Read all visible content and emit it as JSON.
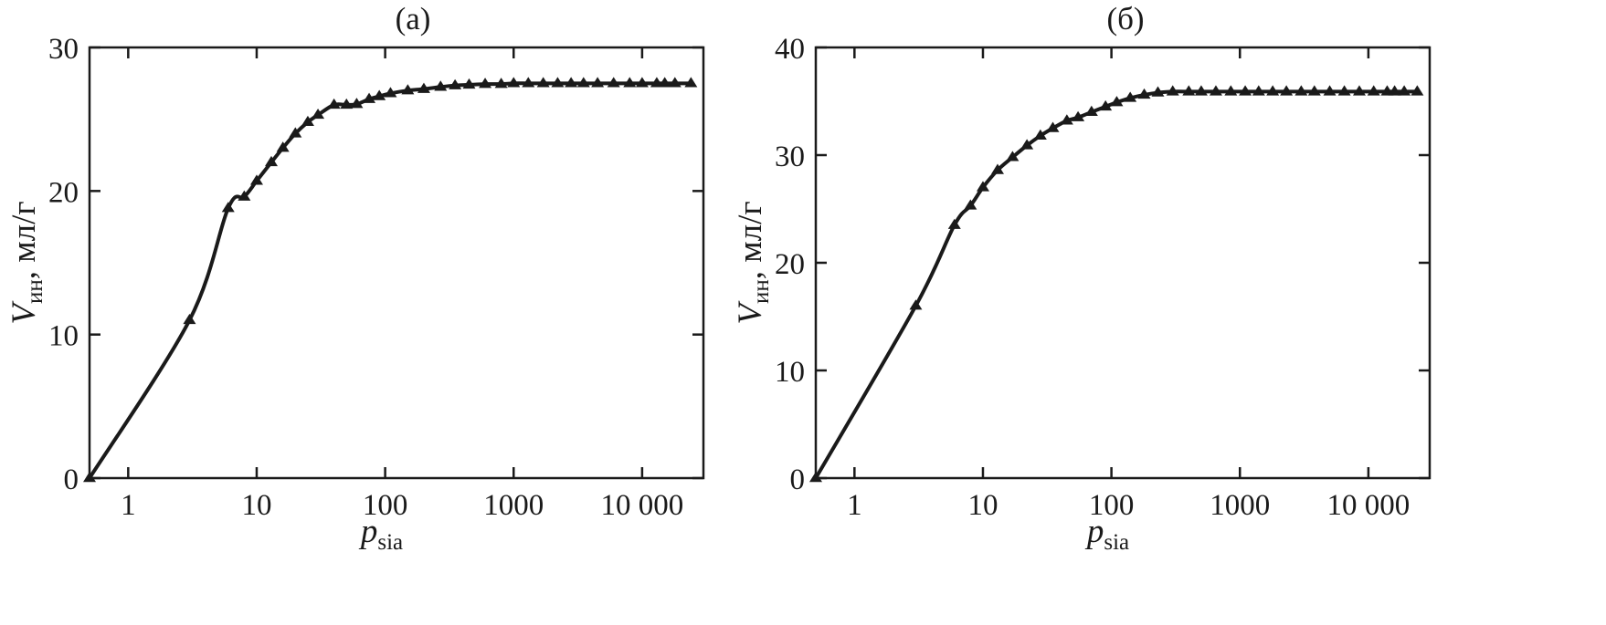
{
  "chart_data": [
    {
      "type": "line",
      "title": "(а)",
      "xlabel": "p",
      "xlabel_sub": "sia",
      "ylabel": "V",
      "ylabel_sub": "ин",
      "ylabel_unit": ", мл/г",
      "xscale": "log",
      "xlim": [
        0.5,
        30000
      ],
      "ylim": [
        0,
        30
      ],
      "grid": false,
      "xticks": [
        1,
        10,
        100,
        1000,
        10000
      ],
      "xtick_labels": [
        "1",
        "10",
        "100",
        "1000",
        "10 000"
      ],
      "yticks": [
        0,
        10,
        20,
        30
      ],
      "ytick_labels": [
        "0",
        "10",
        "20",
        "30"
      ],
      "marker": "triangle",
      "series": [
        {
          "x": [
            0.5,
            3,
            6,
            8,
            10,
            13,
            16,
            20,
            25,
            30,
            40,
            50,
            60,
            75,
            90,
            110,
            150,
            200,
            270,
            350,
            450,
            600,
            800,
            1000,
            1300,
            1700,
            2200,
            2800,
            3500,
            4500,
            6000,
            8000,
            10000,
            13000,
            15000,
            18000,
            24000
          ],
          "y": [
            0,
            11,
            18.8,
            19.6,
            20.7,
            22,
            23,
            24,
            24.8,
            25.3,
            26,
            26,
            26.05,
            26.4,
            26.6,
            26.8,
            27,
            27.1,
            27.25,
            27.35,
            27.4,
            27.45,
            27.45,
            27.5,
            27.5,
            27.5,
            27.5,
            27.5,
            27.5,
            27.5,
            27.5,
            27.5,
            27.5,
            27.5,
            27.5,
            27.5,
            27.5
          ]
        }
      ]
    },
    {
      "type": "line",
      "title": "(б)",
      "xlabel": "p",
      "xlabel_sub": "sia",
      "ylabel": "V",
      "ylabel_sub": "ин",
      "ylabel_unit": ", мл/г",
      "xscale": "log",
      "xlim": [
        0.5,
        30000
      ],
      "ylim": [
        0,
        40
      ],
      "grid": false,
      "xticks": [
        1,
        10,
        100,
        1000,
        10000
      ],
      "xtick_labels": [
        "1",
        "10",
        "100",
        "1000",
        "10 000"
      ],
      "yticks": [
        0,
        10,
        20,
        30,
        40
      ],
      "ytick_labels": [
        "0",
        "10",
        "20",
        "30",
        "40"
      ],
      "marker": "triangle",
      "series": [
        {
          "x": [
            0.5,
            3,
            6,
            8,
            10,
            13,
            17,
            22,
            28,
            35,
            45,
            55,
            70,
            90,
            110,
            140,
            180,
            230,
            300,
            400,
            500,
            650,
            850,
            1100,
            1400,
            1800,
            2300,
            3000,
            3800,
            5000,
            6500,
            8500,
            11000,
            14000,
            16000,
            19000,
            24000
          ],
          "y": [
            0,
            16,
            23.5,
            25.3,
            27,
            28.6,
            29.8,
            30.9,
            31.8,
            32.5,
            33.2,
            33.5,
            34,
            34.5,
            34.9,
            35.3,
            35.6,
            35.8,
            35.9,
            35.9,
            35.9,
            35.9,
            35.9,
            35.9,
            35.9,
            35.9,
            35.9,
            35.9,
            35.9,
            35.9,
            35.9,
            35.9,
            35.9,
            35.9,
            35.9,
            35.9,
            35.9
          ]
        }
      ]
    }
  ]
}
